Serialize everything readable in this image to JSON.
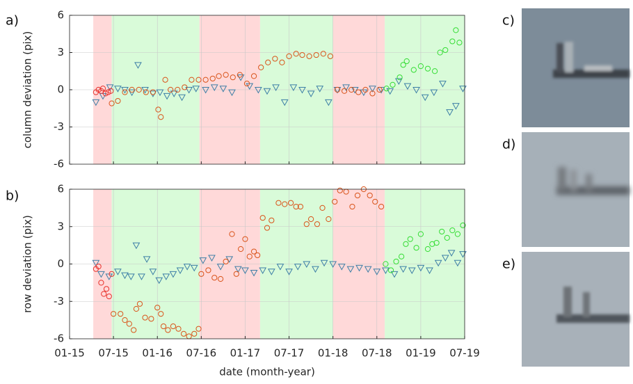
{
  "chart_data": [
    {
      "type": "scatter",
      "panel_label": "a)",
      "ylabel": "column deviation (pix)",
      "xlim": [
        2015.0,
        2019.5
      ],
      "ylim": [
        -6,
        6
      ],
      "yticks": [
        -6,
        -3,
        0,
        3,
        6
      ],
      "xticks": [
        2015.0,
        2015.5,
        2016.0,
        2016.5,
        2017.0,
        2017.5,
        2018.0,
        2018.5,
        2019.0,
        2019.5
      ],
      "grid": true,
      "periods": [
        {
          "start": 2015.27,
          "end": 2015.48,
          "color": "#ffd9d9"
        },
        {
          "start": 2015.48,
          "end": 2016.48,
          "color": "#d9fbd9"
        },
        {
          "start": 2016.48,
          "end": 2017.17,
          "color": "#ffd9d9"
        },
        {
          "start": 2017.17,
          "end": 2018.0,
          "color": "#d9fbd9"
        },
        {
          "start": 2018.0,
          "end": 2018.59,
          "color": "#ffd9d9"
        },
        {
          "start": 2018.59,
          "end": 2019.5,
          "color": "#d9fbd9"
        }
      ],
      "series": [
        {
          "marker": "triangle",
          "color": "#3c7ea6",
          "x": [
            2015.3,
            2015.38,
            2015.46,
            2015.55,
            2015.63,
            2015.71,
            2015.78,
            2015.86,
            2015.95,
            2016.03,
            2016.11,
            2016.19,
            2016.28,
            2016.36,
            2016.44,
            2016.55,
            2016.65,
            2016.75,
            2016.85,
            2016.95,
            2017.05,
            2017.15,
            2017.25,
            2017.35,
            2017.45,
            2017.55,
            2017.65,
            2017.75,
            2017.85,
            2017.95,
            2018.05,
            2018.15,
            2018.25,
            2018.35,
            2018.45,
            2018.55,
            2018.65,
            2018.75,
            2018.85,
            2018.95,
            2019.05,
            2019.15,
            2019.25,
            2019.33,
            2019.4,
            2019.48
          ],
          "values": [
            -1.0,
            -0.5,
            0.2,
            0.1,
            0,
            -0.2,
            2.0,
            0,
            -0.3,
            -0.2,
            -0.5,
            -0.3,
            -0.6,
            0,
            0.1,
            0,
            0.2,
            0.1,
            -0.2,
            1.0,
            0.3,
            0,
            -0.1,
            0.2,
            -1.0,
            0.2,
            0,
            -0.3,
            0.1,
            -1.0,
            0,
            0.2,
            0,
            -0.2,
            0.1,
            0,
            -0.1,
            0.7,
            0.3,
            0,
            -0.6,
            -0.2,
            0.5,
            -1.8,
            -1.3,
            0.1
          ]
        },
        {
          "marker": "circle",
          "color": "#e8302a",
          "x": [
            2015.3,
            2015.33,
            2015.36,
            2015.38,
            2015.41,
            2015.44,
            2015.47
          ],
          "values": [
            -0.2,
            0,
            -0.1,
            0.1,
            -0.3,
            -0.2,
            -0.1
          ]
        },
        {
          "marker": "circle",
          "color": "#d95319",
          "x": [
            2015.48,
            2015.55,
            2015.63,
            2015.71,
            2015.79,
            2015.87,
            2015.95,
            2016.01,
            2016.04,
            2016.09,
            2016.15,
            2016.23,
            2016.31,
            2016.39,
            2016.47,
            2016.55,
            2016.63,
            2016.7,
            2016.78,
            2016.86,
            2016.94,
            2017.02,
            2017.1,
            2017.18,
            2017.26,
            2017.34,
            2017.42,
            2017.5,
            2017.58,
            2017.65,
            2017.73,
            2017.81,
            2017.89,
            2017.97,
            2018.05,
            2018.13,
            2018.21,
            2018.29,
            2018.37,
            2018.45,
            2018.53
          ],
          "values": [
            -1.1,
            -0.9,
            -0.2,
            0,
            0,
            -0.2,
            -0.2,
            -1.6,
            -2.2,
            0.8,
            0,
            0,
            0.2,
            0.8,
            0.8,
            0.8,
            0.9,
            1.1,
            1.2,
            1.0,
            1.2,
            0.5,
            1.1,
            1.8,
            2.2,
            2.5,
            2.2,
            2.7,
            2.9,
            2.8,
            2.7,
            2.8,
            2.9,
            2.7,
            0,
            -0.1,
            0,
            -0.2,
            0,
            -0.3,
            0
          ]
        },
        {
          "marker": "circle",
          "color": "#33dd33",
          "x": [
            2018.61,
            2018.68,
            2018.76,
            2018.8,
            2018.84,
            2018.92,
            2019.0,
            2019.08,
            2019.16,
            2019.22,
            2019.28,
            2019.36,
            2019.4,
            2019.44
          ],
          "values": [
            0.1,
            0.4,
            1.0,
            2.0,
            2.3,
            1.6,
            1.9,
            1.7,
            1.5,
            3.0,
            3.2,
            3.9,
            4.8,
            3.8
          ]
        }
      ]
    },
    {
      "type": "scatter",
      "panel_label": "b)",
      "ylabel": "row deviation (pix)",
      "xlabel": "date (month-year)",
      "xlim": [
        2015.0,
        2019.5
      ],
      "ylim": [
        -6,
        6
      ],
      "yticks": [
        -6,
        -3,
        0,
        3,
        6
      ],
      "xticks": [
        {
          "value": 2015.0,
          "label": "01-15"
        },
        {
          "value": 2015.5,
          "label": "07-15"
        },
        {
          "value": 2016.0,
          "label": "01-16"
        },
        {
          "value": 2016.5,
          "label": "07-16"
        },
        {
          "value": 2017.0,
          "label": "01-17"
        },
        {
          "value": 2017.5,
          "label": "07-17"
        },
        {
          "value": 2018.0,
          "label": "01-18"
        },
        {
          "value": 2018.5,
          "label": "07-18"
        },
        {
          "value": 2019.0,
          "label": "01-19"
        },
        {
          "value": 2019.5,
          "label": "07-19"
        }
      ],
      "grid": true,
      "periods": [
        {
          "start": 2015.27,
          "end": 2015.48,
          "color": "#ffd9d9"
        },
        {
          "start": 2015.48,
          "end": 2016.48,
          "color": "#d9fbd9"
        },
        {
          "start": 2016.48,
          "end": 2017.17,
          "color": "#ffd9d9"
        },
        {
          "start": 2017.17,
          "end": 2018.0,
          "color": "#d9fbd9"
        },
        {
          "start": 2018.0,
          "end": 2018.59,
          "color": "#ffd9d9"
        },
        {
          "start": 2018.59,
          "end": 2019.5,
          "color": "#d9fbd9"
        }
      ],
      "series": [
        {
          "marker": "triangle",
          "color": "#3c7ea6",
          "x": [
            2015.3,
            2015.36,
            2015.45,
            2015.55,
            2015.63,
            2015.7,
            2015.76,
            2015.82,
            2015.88,
            2015.95,
            2016.02,
            2016.1,
            2016.18,
            2016.26,
            2016.34,
            2016.42,
            2016.52,
            2016.62,
            2016.72,
            2016.82,
            2016.92,
            2017.0,
            2017.1,
            2017.2,
            2017.3,
            2017.4,
            2017.5,
            2017.6,
            2017.7,
            2017.8,
            2017.9,
            2018.0,
            2018.1,
            2018.2,
            2018.3,
            2018.4,
            2018.5,
            2018.6,
            2018.7,
            2018.8,
            2018.9,
            2019.0,
            2019.1,
            2019.2,
            2019.28,
            2019.35,
            2019.42,
            2019.48
          ],
          "values": [
            0.1,
            -0.8,
            -1.0,
            -0.6,
            -0.9,
            -1.0,
            1.5,
            -1.0,
            0.4,
            -0.6,
            -1.3,
            -1.0,
            -0.8,
            -0.5,
            -0.2,
            -0.3,
            0.3,
            0.5,
            -0.2,
            0.4,
            -0.4,
            -0.5,
            -0.7,
            -0.5,
            -0.6,
            -0.2,
            -0.6,
            -0.2,
            0,
            -0.4,
            0.1,
            0,
            -0.2,
            -0.4,
            -0.3,
            -0.4,
            -0.6,
            -0.5,
            -0.8,
            -0.4,
            -0.5,
            -0.3,
            -0.5,
            0.1,
            0.5,
            0.9,
            0.1,
            0.8
          ]
        },
        {
          "marker": "circle",
          "color": "#e8302a",
          "x": [
            2015.3,
            2015.33,
            2015.36,
            2015.39,
            2015.42,
            2015.45,
            2015.48
          ],
          "values": [
            -0.4,
            -0.2,
            -1.5,
            -2.4,
            -2.0,
            -2.6,
            -0.8
          ]
        },
        {
          "marker": "circle",
          "color": "#d95319",
          "x": [
            2015.5,
            2015.58,
            2015.63,
            2015.68,
            2015.73,
            2015.76,
            2015.8,
            2015.86,
            2015.93,
            2016.0,
            2016.04,
            2016.07,
            2016.12,
            2016.18,
            2016.24,
            2016.3,
            2016.36,
            2016.42,
            2016.47,
            2016.5,
            2016.58,
            2016.65,
            2016.72,
            2016.78,
            2016.85,
            2016.9,
            2016.95,
            2017.0,
            2017.05,
            2017.1,
            2017.14,
            2017.2,
            2017.25,
            2017.3,
            2017.38,
            2017.45,
            2017.52,
            2017.58,
            2017.63,
            2017.7,
            2017.75,
            2017.82,
            2017.88,
            2017.95,
            2018.02,
            2018.08,
            2018.15,
            2018.22,
            2018.28,
            2018.35,
            2018.42,
            2018.48,
            2018.55
          ],
          "values": [
            -4.0,
            -4.0,
            -4.5,
            -4.8,
            -5.3,
            -3.6,
            -3.2,
            -4.3,
            -4.4,
            -3.5,
            -4.0,
            -5.0,
            -5.3,
            -5.0,
            -5.2,
            -5.6,
            -5.8,
            -5.6,
            -5.2,
            -0.8,
            -0.5,
            -1.1,
            -1.2,
            0.2,
            2.4,
            -0.8,
            1.2,
            2.0,
            0.6,
            1.0,
            0.7,
            3.7,
            2.9,
            3.5,
            4.9,
            4.8,
            4.9,
            4.6,
            4.6,
            3.2,
            3.6,
            3.2,
            4.5,
            3.6,
            5.0,
            5.9,
            5.8,
            4.6,
            5.5,
            6.0,
            5.5,
            5.0,
            4.6
          ]
        },
        {
          "marker": "circle",
          "color": "#33dd33",
          "x": [
            2018.6,
            2018.66,
            2018.72,
            2018.78,
            2018.83,
            2018.88,
            2018.95,
            2019.0,
            2019.08,
            2019.13,
            2019.18,
            2019.24,
            2019.3,
            2019.36,
            2019.42,
            2019.48
          ],
          "values": [
            0,
            -0.5,
            0.2,
            0.6,
            1.6,
            2.0,
            1.3,
            2.4,
            1.2,
            1.6,
            1.7,
            2.6,
            2.1,
            2.7,
            2.4,
            3.1
          ]
        }
      ]
    }
  ],
  "images": [
    {
      "label": "c)"
    },
    {
      "label": "d)"
    },
    {
      "label": "e)"
    }
  ]
}
